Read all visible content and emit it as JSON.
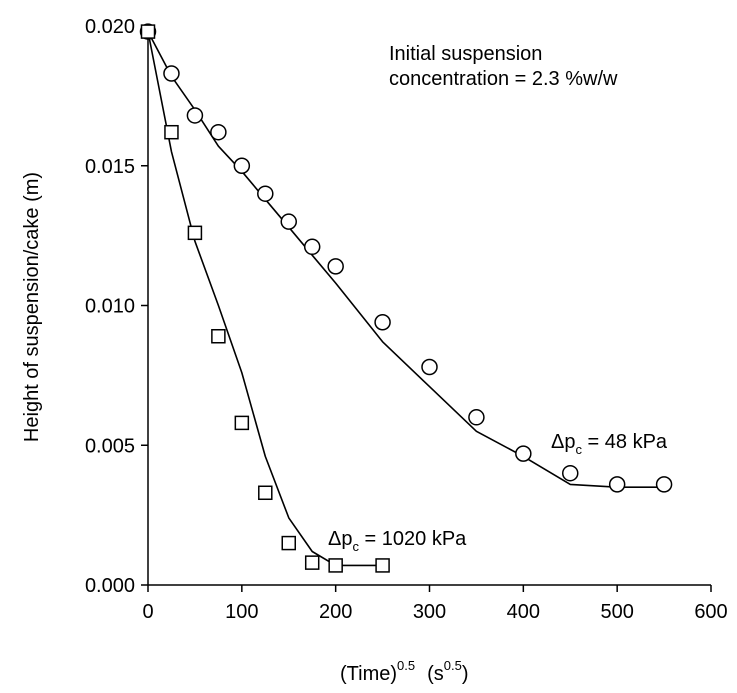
{
  "chart_data": {
    "type": "scatter",
    "xlabel_main": "(Time)",
    "xlabel_exp": "0.5",
    "xlabel_unit_open": "(s",
    "xlabel_unit_exp": "0.5",
    "xlabel_unit_close": ")",
    "ylabel": "Height of suspension/cake (m)",
    "xlim": [
      0,
      600
    ],
    "ylim": [
      0,
      0.02
    ],
    "xticks": [
      0,
      100,
      200,
      300,
      400,
      500,
      600
    ],
    "xtick_labels": [
      "0",
      "100",
      "200",
      "300",
      "400",
      "500",
      "600"
    ],
    "yticks": [
      0,
      0.005,
      0.01,
      0.015,
      0.02
    ],
    "ytick_labels": [
      "0.000",
      "0.005",
      "0.010",
      "0.015",
      "0.020"
    ],
    "grid": false,
    "annotation_line1": "Initial suspension",
    "annotation_line2": "concentration = 2.3 %w/w",
    "series": [
      {
        "marker": "circle",
        "label_delta": "Δp",
        "label_sub": "c",
        "label_value": " = 48 kPa",
        "points": [
          [
            0,
            0.0198
          ],
          [
            25,
            0.0183
          ],
          [
            50,
            0.0168
          ],
          [
            75,
            0.0162
          ],
          [
            100,
            0.015
          ],
          [
            125,
            0.014
          ],
          [
            150,
            0.013
          ],
          [
            175,
            0.0121
          ],
          [
            200,
            0.0114
          ],
          [
            250,
            0.0094
          ],
          [
            300,
            0.0078
          ],
          [
            350,
            0.006
          ],
          [
            400,
            0.0047
          ],
          [
            450,
            0.004
          ],
          [
            500,
            0.0036
          ],
          [
            550,
            0.0036
          ]
        ],
        "fit": [
          [
            0,
            0.0198
          ],
          [
            25,
            0.0182
          ],
          [
            50,
            0.017
          ],
          [
            75,
            0.0157
          ],
          [
            100,
            0.0148
          ],
          [
            125,
            0.0138
          ],
          [
            150,
            0.0128
          ],
          [
            175,
            0.0118
          ],
          [
            200,
            0.0108
          ],
          [
            250,
            0.0087
          ],
          [
            300,
            0.0071
          ],
          [
            350,
            0.0055
          ],
          [
            400,
            0.0046
          ],
          [
            450,
            0.0036
          ],
          [
            500,
            0.0035
          ],
          [
            550,
            0.0035
          ]
        ]
      },
      {
        "marker": "square",
        "label_delta": "Δp",
        "label_sub": "c",
        "label_value": " = 1020 kPa",
        "points": [
          [
            0,
            0.0198
          ],
          [
            25,
            0.0162
          ],
          [
            50,
            0.0126
          ],
          [
            75,
            0.0089
          ],
          [
            100,
            0.0058
          ],
          [
            125,
            0.0033
          ],
          [
            150,
            0.0015
          ],
          [
            175,
            0.0008
          ],
          [
            200,
            0.0007
          ],
          [
            250,
            0.0007
          ]
        ],
        "fit": [
          [
            0,
            0.0198
          ],
          [
            25,
            0.0155
          ],
          [
            50,
            0.0123
          ],
          [
            75,
            0.01
          ],
          [
            100,
            0.0076
          ],
          [
            125,
            0.0046
          ],
          [
            150,
            0.0024
          ],
          [
            175,
            0.0012
          ],
          [
            200,
            0.0007
          ],
          [
            250,
            0.0007
          ]
        ]
      }
    ]
  }
}
